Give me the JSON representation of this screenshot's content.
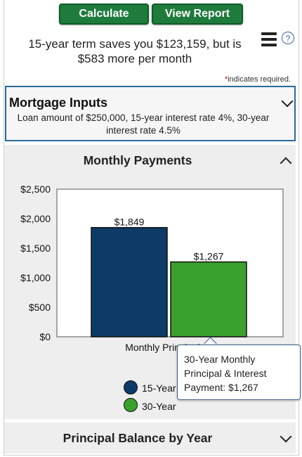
{
  "toolbar": {
    "calculate_label": "Calculate",
    "report_label": "View Report"
  },
  "summary": {
    "line1": "15-year term saves you $123,159, but is",
    "line2": "$583 more per month"
  },
  "icons": {
    "menu": "hamburger-menu-icon",
    "help": "help-icon",
    "help_glyph": "?"
  },
  "required_note": {
    "asterisk": "*",
    "text": "indicates required."
  },
  "mortgage_inputs": {
    "title": "Mortgage Inputs",
    "description": "Loan amount of $250,000, 15-year interest rate 4%, 30-year interest rate 4.5%"
  },
  "monthly_payments": {
    "title": "Monthly Payments"
  },
  "chart_data": {
    "type": "bar",
    "categories": [
      "Monthly Principal & Interest Payment"
    ],
    "series": [
      {
        "name": "15-Year",
        "values": [
          1849
        ],
        "color": "#0d3a66",
        "label": "$1,849"
      },
      {
        "name": "30-Year",
        "values": [
          1267
        ],
        "color": "#3aa12f",
        "label": "$1,267"
      }
    ],
    "ylim": [
      0,
      2500
    ],
    "yticks": [
      "$0",
      "$500",
      "$1,000",
      "$1,500",
      "$2,000",
      "$2,500"
    ],
    "xlabel_visible": "Monthly Principal & I",
    "grid": false,
    "legend_position": "bottom"
  },
  "tooltip": {
    "line1": "30-Year Monthly",
    "line2": "Principal & Interest",
    "line3": "Payment: $1,267"
  },
  "principal_balance": {
    "title": "Principal Balance by Year"
  }
}
